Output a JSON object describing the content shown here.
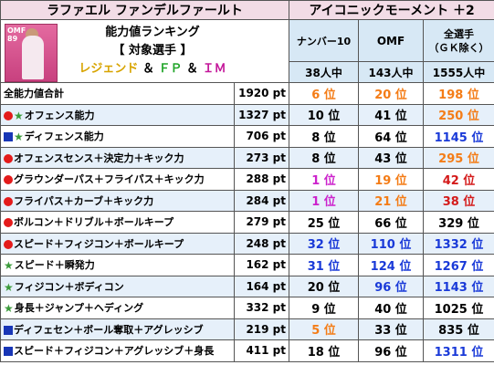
{
  "header": {
    "player_name": "ラファエル ファンデルファールト",
    "card_type": "アイコニックモーメント ＋2",
    "photo_rating": "OMF\n89",
    "panel_line1": "能力値ランキング",
    "panel_line2": "【 対象選手 】",
    "panel_line3_a": "レジェンド",
    "panel_amp1": "＆",
    "panel_line3_b": "ＦＰ",
    "panel_amp2": "＆",
    "panel_line3_c": "ＩＭ"
  },
  "columns": {
    "col1": "ナンバー10",
    "col2": "OMF",
    "col3": "全選手\n（ＧＫ除く）",
    "count1": "38人中",
    "count2": "143人中",
    "count3": "1555人中"
  },
  "colors": {
    "orange": "#f47c16",
    "blue": "#1a3ad8",
    "pink": "#cc22cc",
    "red_circle": "#e41b1b",
    "blue_square": "#1836b6",
    "green_star": "#3b9b3b"
  },
  "rows": [
    {
      "icons": [],
      "label": "全能力値合計",
      "pt": "1920 pt",
      "r1": "6 位",
      "c1": "orange",
      "r2": "20 位",
      "c2": "orange",
      "r3": "198 位",
      "c3": "orange"
    },
    {
      "icons": [
        "circle",
        "star"
      ],
      "label": "オフェンス能力",
      "pt": "1327 pt",
      "r1": "10 位",
      "c1": "black",
      "r2": "41 位",
      "c2": "black",
      "r3": "250 位",
      "c3": "orange"
    },
    {
      "icons": [
        "square",
        "star"
      ],
      "label": "ディフェンス能力",
      "pt": "706 pt",
      "r1": "8 位",
      "c1": "black",
      "r2": "64 位",
      "c2": "black",
      "r3": "1145 位",
      "c3": "blue"
    },
    {
      "icons": [
        "circle"
      ],
      "label": "オフェンスセンス＋決定力＋キック力",
      "pt": "273 pt",
      "r1": "8 位",
      "c1": "black",
      "r2": "43 位",
      "c2": "black",
      "r3": "295 位",
      "c3": "orange"
    },
    {
      "icons": [
        "circle"
      ],
      "label": "グラウンダーパス＋フライパス＋キック力",
      "pt": "288 pt",
      "r1": "1 位",
      "c1": "pink",
      "r2": "19 位",
      "c2": "orange",
      "r3": "42 位",
      "c3": "red"
    },
    {
      "icons": [
        "circle"
      ],
      "label": "フライパス＋カーブ＋キック力",
      "pt": "284 pt",
      "r1": "1 位",
      "c1": "pink",
      "r2": "21 位",
      "c2": "orange",
      "r3": "38 位",
      "c3": "red"
    },
    {
      "icons": [
        "circle"
      ],
      "label": "ボルコン＋ドリブル＋ボールキープ",
      "pt": "279 pt",
      "r1": "25 位",
      "c1": "black",
      "r2": "66 位",
      "c2": "black",
      "r3": "329 位",
      "c3": "black"
    },
    {
      "icons": [
        "circle"
      ],
      "label": "スピード＋フィジコン＋ボールキープ",
      "pt": "248 pt",
      "r1": "32 位",
      "c1": "blue",
      "r2": "110 位",
      "c2": "blue",
      "r3": "1332 位",
      "c3": "blue"
    },
    {
      "icons": [
        "star"
      ],
      "label": "スピード＋瞬発力",
      "pt": "162 pt",
      "r1": "31 位",
      "c1": "blue",
      "r2": "124 位",
      "c2": "blue",
      "r3": "1267 位",
      "c3": "blue"
    },
    {
      "icons": [
        "star"
      ],
      "label": "フィジコン＋ボディコン",
      "pt": "164 pt",
      "r1": "20 位",
      "c1": "black",
      "r2": "96 位",
      "c2": "blue",
      "r3": "1143 位",
      "c3": "blue"
    },
    {
      "icons": [
        "star"
      ],
      "label": "身長＋ジャンプ＋ヘディング",
      "pt": "332 pt",
      "r1": "9 位",
      "c1": "black",
      "r2": "40 位",
      "c2": "black",
      "r3": "1025 位",
      "c3": "black"
    },
    {
      "icons": [
        "square"
      ],
      "label": "ディフェセン＋ボール奪取＋アグレッシブ",
      "pt": "219 pt",
      "r1": "5 位",
      "c1": "orange",
      "r2": "33 位",
      "c2": "black",
      "r3": "835 位",
      "c3": "black"
    },
    {
      "icons": [
        "square"
      ],
      "label": "スピード＋フィジコン＋アグレッシブ＋身長",
      "pt": "411 pt",
      "r1": "18 位",
      "c1": "black",
      "r2": "96 位",
      "c2": "black",
      "r3": "1311 位",
      "c3": "blue"
    }
  ]
}
